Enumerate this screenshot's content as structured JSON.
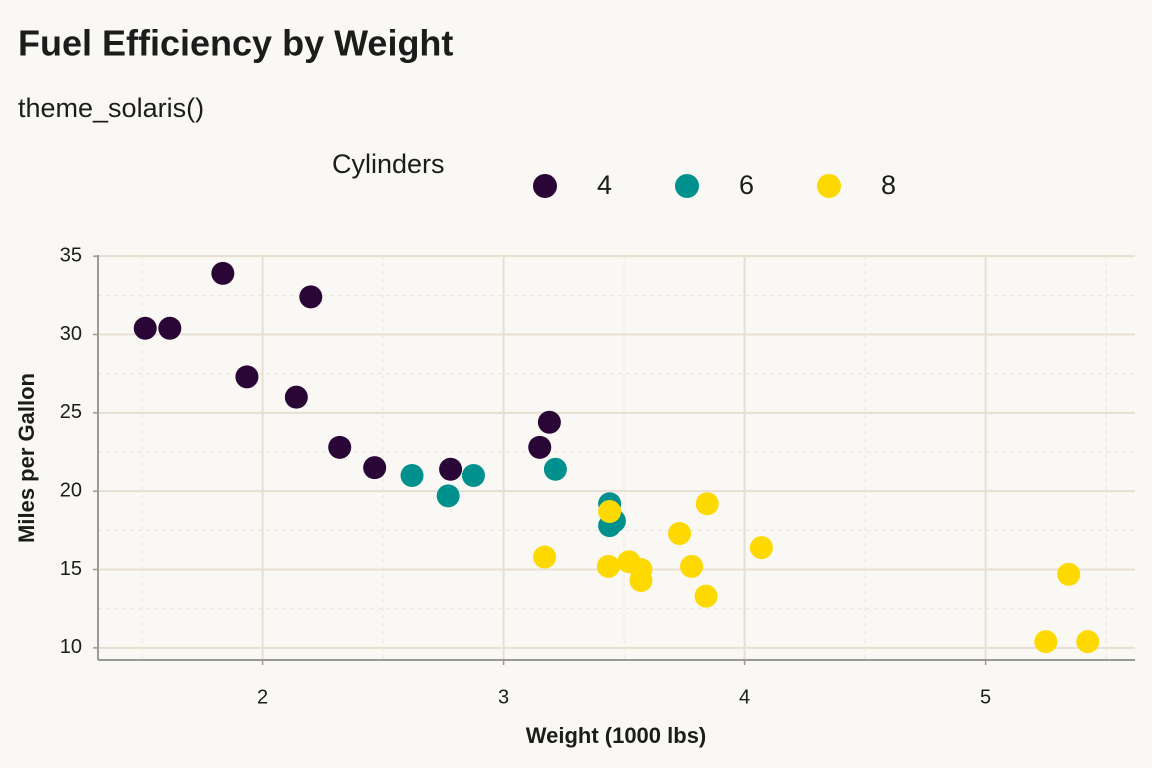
{
  "chart_data": {
    "type": "scatter",
    "title": "Fuel Efficiency by Weight",
    "subtitle": "theme_solaris()",
    "x_label": "Weight (1000 lbs)",
    "y_label": "Miles per Gallon",
    "legend_title": "Cylinders",
    "legend_position": "top",
    "grid": true,
    "xlim": [
      1.317,
      5.62
    ],
    "ylim": [
      9.225,
      35.075
    ],
    "xticks": [
      2,
      3,
      4,
      5
    ],
    "yticks": [
      10,
      15,
      20,
      25,
      30,
      35
    ],
    "xminor": [
      1.5,
      2.5,
      3.5,
      4.5,
      5.5
    ],
    "yminor": [
      12.5,
      17.5,
      22.5,
      27.5,
      32.5
    ],
    "series": [
      {
        "name": "4",
        "color": "#2a0637",
        "x": [
          2.32,
          3.19,
          3.15,
          2.2,
          1.615,
          1.835,
          2.465,
          1.935,
          2.14,
          1.513,
          2.78
        ],
        "values": [
          22.8,
          24.4,
          22.8,
          32.4,
          30.4,
          33.9,
          21.5,
          27.3,
          26.0,
          30.4,
          21.4
        ]
      },
      {
        "name": "6",
        "color": "#00918f",
        "x": [
          2.62,
          2.875,
          3.215,
          3.46,
          3.44,
          3.44,
          2.77
        ],
        "values": [
          21.0,
          21.0,
          21.4,
          18.1,
          19.2,
          17.8,
          19.7
        ]
      },
      {
        "name": "8",
        "color": "#fdd900",
        "x": [
          3.44,
          3.57,
          4.07,
          3.73,
          3.78,
          5.25,
          5.424,
          5.345,
          3.52,
          3.435,
          3.84,
          3.845,
          3.17,
          3.57
        ],
        "values": [
          18.7,
          14.3,
          16.4,
          17.3,
          15.2,
          10.4,
          10.4,
          14.7,
          15.5,
          15.2,
          13.3,
          19.2,
          15.8,
          15.0
        ]
      }
    ]
  }
}
